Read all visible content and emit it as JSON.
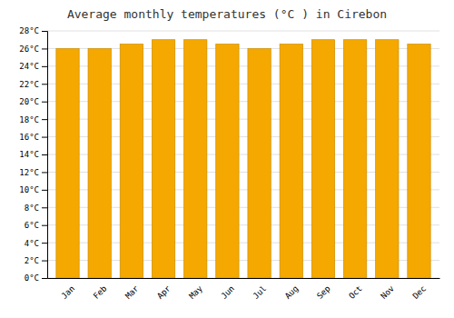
{
  "chart_data": {
    "type": "bar",
    "title": "Average monthly temperatures (°C ) in Cirebon",
    "categories": [
      "Jan",
      "Feb",
      "Mar",
      "Apr",
      "May",
      "Jun",
      "Jul",
      "Aug",
      "Sep",
      "Oct",
      "Nov",
      "Dec"
    ],
    "values": [
      26.0,
      26.0,
      26.5,
      27.0,
      27.0,
      26.5,
      26.0,
      26.5,
      27.0,
      27.0,
      27.0,
      26.5
    ],
    "color": "#F5A800",
    "ylim": [
      0,
      28
    ],
    "yticks": [
      {
        "value": 0,
        "label": "0°C"
      },
      {
        "value": 2,
        "label": "2°C"
      },
      {
        "value": 4,
        "label": "4°C"
      },
      {
        "value": 6,
        "label": "6°C"
      },
      {
        "value": 8,
        "label": "8°C"
      },
      {
        "value": 10,
        "label": "10°C"
      },
      {
        "value": 12,
        "label": "12°C"
      },
      {
        "value": 14,
        "label": "14°C"
      },
      {
        "value": 16,
        "label": "16°C"
      },
      {
        "value": 18,
        "label": "18°C"
      },
      {
        "value": 20,
        "label": "20°C"
      },
      {
        "value": 22,
        "label": "22°C"
      },
      {
        "value": 24,
        "label": "24°C"
      },
      {
        "value": 26,
        "label": "26°C"
      },
      {
        "value": 28,
        "label": "28°C"
      }
    ],
    "grid": true
  }
}
